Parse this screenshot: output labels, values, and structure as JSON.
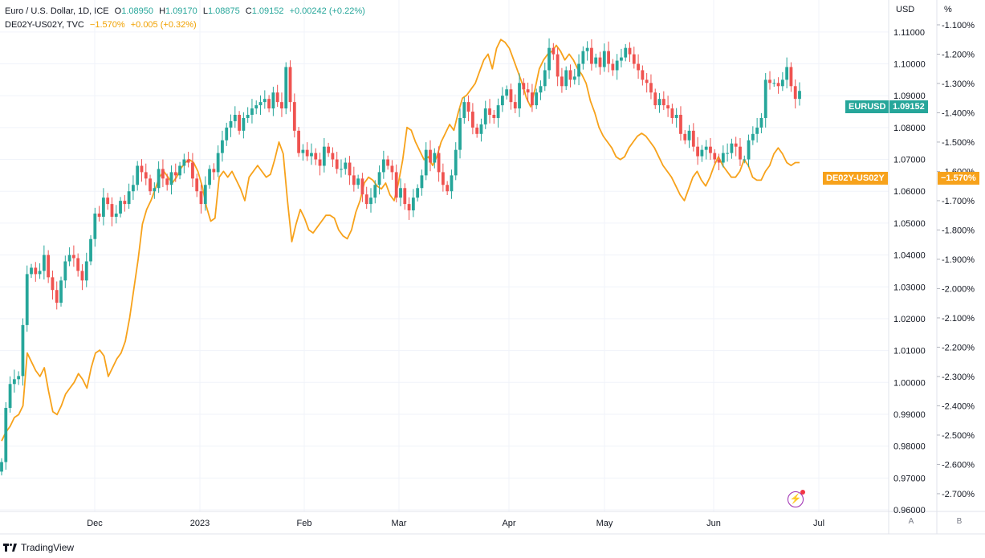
{
  "legend": {
    "main": {
      "symbol": "Euro / U.S. Dollar, 1D, ICE",
      "open_label": "O",
      "open": "1.08950",
      "high_label": "H",
      "high": "1.09170",
      "low_label": "L",
      "low": "1.08875",
      "close_label": "C",
      "close": "1.09152",
      "change": "+0.00242 (+0.22%)"
    },
    "overlay": {
      "symbol": "DE02Y-US02Y, TVC",
      "value": "−1.570%",
      "change": "+0.005 (+0.32%)"
    }
  },
  "axes": {
    "left_unit": "USD",
    "right_unit": "%",
    "left_ticks": [
      "1.11000",
      "1.10000",
      "1.09000",
      "1.08000",
      "1.07000",
      "1.06000",
      "1.05000",
      "1.04000",
      "1.03000",
      "1.02000",
      "1.01000",
      "1.00000",
      "0.99000",
      "0.98000",
      "0.97000",
      "0.96000"
    ],
    "right_ticks": [
      "-1.100%",
      "-1.200%",
      "-1.300%",
      "-1.400%",
      "-1.500%",
      "-1.600%",
      "-1.700%",
      "-1.800%",
      "-1.900%",
      "-2.000%",
      "-2.100%",
      "-2.200%",
      "-2.300%",
      "-2.400%",
      "-2.500%",
      "-2.600%",
      "-2.700%"
    ],
    "x_ticks": [
      "Dec",
      "2023",
      "Feb",
      "Mar",
      "Apr",
      "May",
      "Jun",
      "Jul"
    ],
    "scale_buttons": [
      "A",
      "B"
    ]
  },
  "tags": {
    "main_label": "EURUSD",
    "main_value": "1.09152",
    "overlay_label": "DE02Y-US02Y",
    "overlay_value": "−1.570%"
  },
  "footer": {
    "brand": "TradingView"
  },
  "colors": {
    "up": "#26a69a",
    "down": "#ef5350",
    "overlay": "#f7a21b",
    "grid": "#f0f3fa",
    "axis_text": "#131722"
  },
  "chart_data": {
    "type": "candlestick",
    "series": [
      {
        "name": "EURUSD",
        "axis": "left",
        "ylim": [
          0.96,
          1.115
        ],
        "values": [
          0.975,
          0.992,
          0.9995,
          1.001,
          1.002,
          1.018,
          1.034,
          1.036,
          1.034,
          1.035,
          1.04,
          1.033,
          1.029,
          1.025,
          1.032,
          1.038,
          1.04,
          1.039,
          1.035,
          1.032,
          1.038,
          1.045,
          1.053,
          1.052,
          1.058,
          1.056,
          1.052,
          1.053,
          1.057,
          1.056,
          1.06,
          1.062,
          1.068,
          1.066,
          1.064,
          1.06,
          1.061,
          1.067,
          1.064,
          1.062,
          1.066,
          1.065,
          1.068,
          1.07,
          1.069,
          1.064,
          1.06,
          1.056,
          1.062,
          1.067,
          1.066,
          1.072,
          1.076,
          1.08,
          1.082,
          1.084,
          1.079,
          1.083,
          1.084,
          1.086,
          1.087,
          1.088,
          1.089,
          1.086,
          1.091,
          1.088,
          1.086,
          1.099,
          1.088,
          1.079,
          1.072,
          1.073,
          1.071,
          1.072,
          1.07,
          1.068,
          1.074,
          1.072,
          1.07,
          1.067,
          1.067,
          1.069,
          1.065,
          1.062,
          1.064,
          1.059,
          1.056,
          1.058,
          1.062,
          1.066,
          1.07,
          1.068,
          1.066,
          1.058,
          1.061,
          1.056,
          1.054,
          1.058,
          1.061,
          1.065,
          1.073,
          1.069,
          1.072,
          1.066,
          1.062,
          1.06,
          1.065,
          1.073,
          1.083,
          1.088,
          1.085,
          1.08,
          1.078,
          1.081,
          1.086,
          1.084,
          1.083,
          1.087,
          1.09,
          1.092,
          1.088,
          1.086,
          1.094,
          1.092,
          1.091,
          1.087,
          1.091,
          1.093,
          1.098,
          1.105,
          1.103,
          1.096,
          1.093,
          1.098,
          1.095,
          1.096,
          1.1,
          1.104,
          1.105,
          1.1,
          1.102,
          1.099,
          1.104,
          1.1,
          1.098,
          1.101,
          1.102,
          1.105,
          1.103,
          1.1,
          1.098,
          1.095,
          1.094,
          1.091,
          1.087,
          1.089,
          1.087,
          1.086,
          1.083,
          1.084,
          1.078,
          1.076,
          1.079,
          1.074,
          1.071,
          1.073,
          1.074,
          1.072,
          1.07,
          1.069,
          1.072,
          1.072,
          1.075,
          1.074,
          1.07,
          1.07,
          1.076,
          1.078,
          1.08,
          1.083,
          1.095,
          1.094,
          1.094,
          1.093,
          1.095,
          1.099,
          1.093,
          1.089,
          1.0915
        ]
      },
      {
        "name": "DE02Y-US02Y",
        "axis": "right",
        "type": "line",
        "ylim": [
          -2.755,
          -1.07
        ],
        "values": [
          -2.52,
          -2.49,
          -2.47,
          -2.44,
          -2.43,
          -2.4,
          -2.22,
          -2.25,
          -2.28,
          -2.3,
          -2.27,
          -2.35,
          -2.42,
          -2.43,
          -2.4,
          -2.36,
          -2.34,
          -2.32,
          -2.29,
          -2.31,
          -2.34,
          -2.27,
          -2.22,
          -2.21,
          -2.23,
          -2.3,
          -2.27,
          -2.24,
          -2.22,
          -2.18,
          -2.1,
          -2.0,
          -1.9,
          -1.78,
          -1.73,
          -1.7,
          -1.66,
          -1.62,
          -1.6,
          -1.62,
          -1.64,
          -1.62,
          -1.59,
          -1.57,
          -1.56,
          -1.57,
          -1.6,
          -1.65,
          -1.72,
          -1.77,
          -1.76,
          -1.62,
          -1.6,
          -1.62,
          -1.6,
          -1.63,
          -1.66,
          -1.7,
          -1.62,
          -1.6,
          -1.58,
          -1.6,
          -1.62,
          -1.61,
          -1.56,
          -1.5,
          -1.54,
          -1.7,
          -1.84,
          -1.78,
          -1.73,
          -1.76,
          -1.8,
          -1.81,
          -1.79,
          -1.77,
          -1.75,
          -1.75,
          -1.76,
          -1.8,
          -1.82,
          -1.83,
          -1.8,
          -1.74,
          -1.7,
          -1.64,
          -1.62,
          -1.63,
          -1.65,
          -1.66,
          -1.64,
          -1.68,
          -1.7,
          -1.64,
          -1.56,
          -1.45,
          -1.46,
          -1.5,
          -1.53,
          -1.56,
          -1.55,
          -1.58,
          -1.55,
          -1.5,
          -1.47,
          -1.44,
          -1.46,
          -1.4,
          -1.35,
          -1.34,
          -1.32,
          -1.3,
          -1.26,
          -1.22,
          -1.2,
          -1.25,
          -1.18,
          -1.15,
          -1.16,
          -1.18,
          -1.22,
          -1.26,
          -1.3,
          -1.35,
          -1.38,
          -1.32,
          -1.25,
          -1.22,
          -1.2,
          -1.19,
          -1.17,
          -1.19,
          -1.22,
          -1.2,
          -1.22,
          -1.25,
          -1.27,
          -1.3,
          -1.36,
          -1.4,
          -1.45,
          -1.48,
          -1.5,
          -1.52,
          -1.55,
          -1.56,
          -1.55,
          -1.52,
          -1.5,
          -1.48,
          -1.47,
          -1.48,
          -1.5,
          -1.52,
          -1.55,
          -1.58,
          -1.6,
          -1.62,
          -1.65,
          -1.68,
          -1.7,
          -1.66,
          -1.62,
          -1.6,
          -1.63,
          -1.65,
          -1.62,
          -1.58,
          -1.55,
          -1.58,
          -1.6,
          -1.62,
          -1.62,
          -1.6,
          -1.56,
          -1.58,
          -1.62,
          -1.63,
          -1.63,
          -1.6,
          -1.58,
          -1.54,
          -1.52,
          -1.54,
          -1.57,
          -1.58,
          -1.57,
          -1.57
        ]
      }
    ]
  }
}
